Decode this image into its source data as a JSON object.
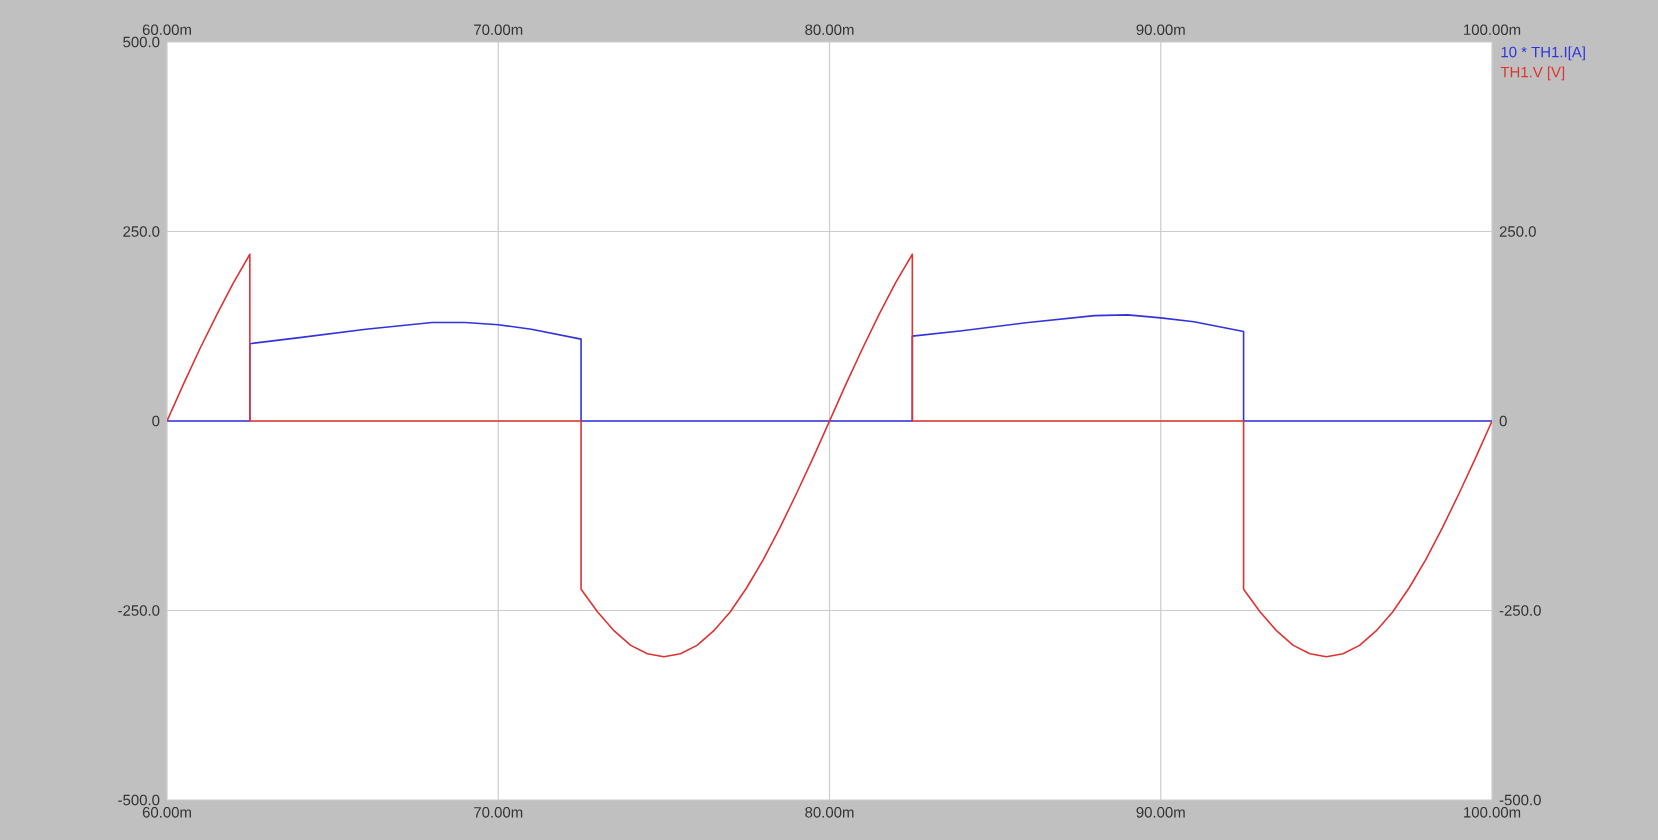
{
  "chart_data": {
    "type": "line",
    "xlim": [
      60,
      100
    ],
    "xticks": [
      {
        "value": 60,
        "label": "60.00m"
      },
      {
        "value": 70,
        "label": "70.00m"
      },
      {
        "value": 80,
        "label": "80.00m"
      },
      {
        "value": 90,
        "label": "90.00m"
      },
      {
        "value": 100,
        "label": "100.00m"
      }
    ],
    "x2lim": [
      60,
      100
    ],
    "x2ticks": [
      {
        "value": 60,
        "label": "60.00m"
      },
      {
        "value": 70,
        "label": "70.00m"
      },
      {
        "value": 80,
        "label": "80.00m"
      },
      {
        "value": 90,
        "label": "90.00m"
      },
      {
        "value": 100,
        "label": "100.00m"
      }
    ],
    "ylim": [
      -500,
      500
    ],
    "yticks": [
      {
        "value": -500,
        "label": "-500.0"
      },
      {
        "value": -250,
        "label": "-250.0"
      },
      0,
      {
        "value": 250,
        "label": "250.0"
      },
      {
        "value": 500,
        "label": "500.0"
      }
    ],
    "y2lim": [
      -500,
      500
    ],
    "y2ticks": [
      {
        "value": -500,
        "label": "-500.0"
      },
      {
        "value": -250,
        "label": "-250.0"
      },
      0,
      {
        "value": 250,
        "label": "250.0"
      }
    ],
    "grid": true,
    "legend": "top right",
    "line_style": "solid",
    "series": [
      {
        "name": "10 * TH1.I[A]",
        "color": "#3333dd",
        "x": [
          60,
          62.5,
          62.5,
          64,
          66,
          68,
          69,
          70,
          71,
          72.5,
          72.5,
          82.5,
          82.5,
          84,
          86,
          88,
          89,
          90,
          91,
          92.5,
          92.5,
          100
        ],
        "values": [
          0,
          0,
          102,
          110,
          121,
          130,
          130,
          127,
          121,
          108,
          0,
          0,
          112,
          119,
          130,
          139,
          140,
          136,
          131,
          118,
          0,
          0
        ]
      },
      {
        "name": "TH1.V [V]",
        "color": "#dd3333",
        "x": [
          60,
          60.5,
          61,
          61.5,
          62,
          62.5,
          62.5,
          72.5,
          72.5,
          73,
          73.5,
          74,
          74.5,
          75,
          75.5,
          76,
          76.5,
          77,
          77.5,
          78,
          78.5,
          79,
          79.5,
          80,
          80.5,
          81,
          81.5,
          82,
          82.5,
          82.5,
          92.5,
          92.5,
          93,
          93.5,
          94,
          94.5,
          95,
          95.5,
          96,
          96.5,
          97,
          97.5,
          98,
          98.5,
          99,
          99.5,
          100
        ],
        "values": [
          0,
          49,
          96,
          140,
          182,
          220,
          0,
          0,
          -222,
          -252,
          -277,
          -296,
          -307,
          -311,
          -307,
          -296,
          -277,
          -252,
          -220,
          -183,
          -141,
          -96,
          -49,
          0,
          49,
          96,
          141,
          183,
          220,
          0,
          0,
          -222,
          -252,
          -277,
          -296,
          -307,
          -311,
          -307,
          -296,
          -277,
          -252,
          -220,
          -183,
          -141,
          -96,
          -49,
          0
        ]
      }
    ]
  }
}
